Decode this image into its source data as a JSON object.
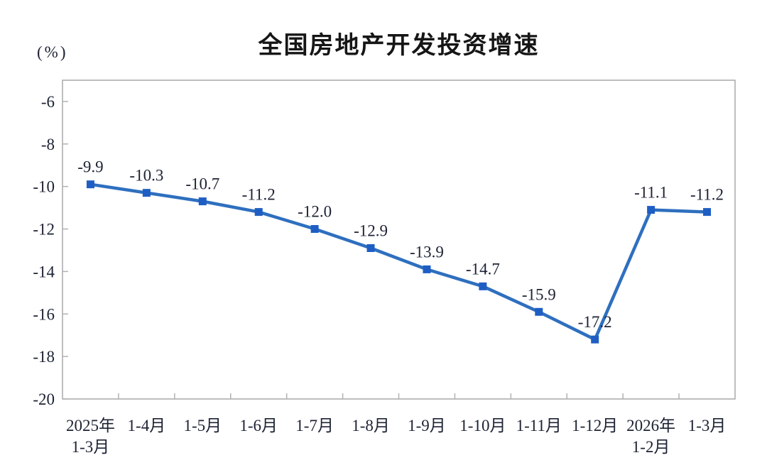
{
  "page": {
    "background_color": "#ffffff"
  },
  "chart_data": {
    "type": "line",
    "title": "全国房地产开发投资增速",
    "unit_label": "(%)",
    "categories": [
      "2025年\n1-3月",
      "1-4月",
      "1-5月",
      "1-6月",
      "1-7月",
      "1-8月",
      "1-9月",
      "1-10月",
      "1-11月",
      "1-12月",
      "2026年\n1-2月",
      "1-3月"
    ],
    "series": [
      {
        "name": "全国房地产开发投资增速",
        "values": [
          -9.9,
          -10.3,
          -10.7,
          -11.2,
          -12.0,
          -12.9,
          -13.9,
          -14.7,
          -15.9,
          -17.2,
          -11.1,
          -11.2
        ]
      }
    ],
    "data_labels": [
      "-9.9",
      "-10.3",
      "-10.7",
      "-11.2",
      "-12.0",
      "-12.9",
      "-13.9",
      "-14.7",
      "-15.9",
      "-17.2",
      "-11.1",
      "-11.2"
    ],
    "xlabel": "",
    "ylabel": "(%)",
    "ylim": [
      -20,
      -5
    ],
    "yticks": [
      -6,
      -8,
      -10,
      -12,
      -14,
      -16,
      -18,
      -20
    ],
    "grid": false,
    "legend_position": "none",
    "marker_shape": "square",
    "line_color": "#2e6fbf",
    "marker_color": "#1e5ec4",
    "label_color": "#1c2233",
    "axis_color": "#a8a8a8",
    "tick_color": "#b2b2b2"
  }
}
